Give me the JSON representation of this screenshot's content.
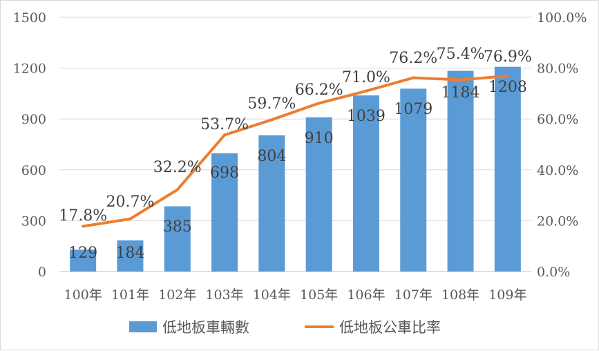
{
  "chart_data": {
    "type": "bar",
    "categories": [
      "100年",
      "101年",
      "102年",
      "103年",
      "104年",
      "105年",
      "106年",
      "107年",
      "108年",
      "109年"
    ],
    "series": [
      {
        "name": "低地板車輛數",
        "type": "bar",
        "axis": "left",
        "color": "#5b9bd5",
        "values": [
          129,
          184,
          385,
          698,
          804,
          910,
          1039,
          1079,
          1184,
          1208
        ],
        "labels": [
          "129",
          "184",
          "385",
          "698",
          "804",
          "910",
          "1039",
          "1079",
          "1184",
          "1208"
        ]
      },
      {
        "name": "低地板公車比率",
        "type": "line",
        "axis": "right",
        "color": "#ed7d31",
        "values": [
          17.8,
          20.7,
          32.2,
          53.7,
          59.7,
          66.2,
          71.0,
          76.2,
          75.4,
          76.9
        ],
        "labels": [
          "17.8%",
          "20.7%",
          "32.2%",
          "53.7%",
          "59.7%",
          "66.2%",
          "71.0%",
          "76.2%",
          "75.4%",
          "76.9%"
        ]
      }
    ],
    "y_left": {
      "min": 0,
      "max": 1500,
      "ticks": [
        "0",
        "300",
        "600",
        "900",
        "1200",
        "1500"
      ]
    },
    "y_right": {
      "min": 0,
      "max": 100,
      "ticks": [
        "0.0%",
        "20.0%",
        "40.0%",
        "60.0%",
        "80.0%",
        "100.0%"
      ]
    },
    "grid": true,
    "legend": "bottom"
  }
}
